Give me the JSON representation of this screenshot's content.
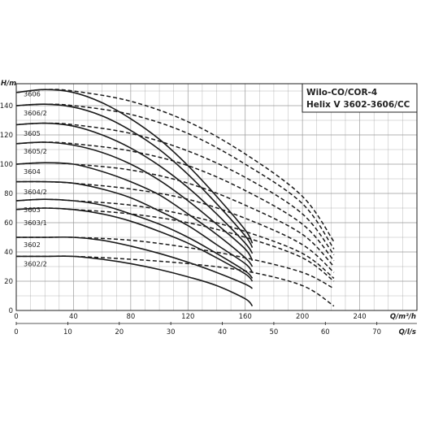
{
  "chart_data": {
    "type": "line",
    "title_lines": [
      "Wilo-CO/COR-4",
      "Helix V 3602-3606/CC"
    ],
    "ylabel": "H/m",
    "xlabel_primary": "Q/m³/h",
    "xlabel_secondary": "Q/l/s",
    "ylim": [
      0,
      155
    ],
    "xlim": [
      0,
      280
    ],
    "xlim_secondary": [
      0,
      77.78
    ],
    "y_ticks": [
      "0",
      "20",
      "40",
      "60",
      "80",
      "100",
      "120",
      "140"
    ],
    "x_ticks": [
      "0",
      "40",
      "80",
      "120",
      "160",
      "200",
      "240"
    ],
    "x2_ticks": [
      "0",
      "10",
      "20",
      "30",
      "40",
      "50",
      "60",
      "70"
    ],
    "grid": true,
    "line_styles": {
      "solid": "#1a1a1a",
      "dashed": "#1a1a1a"
    },
    "series": [
      {
        "name": "3606",
        "label_y": 148,
        "solid": [
          [
            0,
            149
          ],
          [
            20,
            151
          ],
          [
            40,
            149
          ],
          [
            60,
            142
          ],
          [
            80,
            131
          ],
          [
            100,
            117
          ],
          [
            120,
            99
          ],
          [
            140,
            78
          ],
          [
            160,
            55
          ],
          [
            165,
            46
          ]
        ],
        "dashed": [
          [
            0,
            149
          ],
          [
            20,
            151
          ],
          [
            40,
            150
          ],
          [
            80,
            143
          ],
          [
            120,
            129
          ],
          [
            160,
            107
          ],
          [
            200,
            78
          ],
          [
            222,
            47
          ]
        ]
      },
      {
        "name": "3606/2",
        "label_y": 135,
        "solid": [
          [
            0,
            140
          ],
          [
            20,
            141
          ],
          [
            40,
            139
          ],
          [
            60,
            133
          ],
          [
            80,
            123
          ],
          [
            100,
            110
          ],
          [
            120,
            93
          ],
          [
            140,
            73
          ],
          [
            160,
            51
          ],
          [
            165,
            43
          ]
        ],
        "dashed": [
          [
            0,
            140
          ],
          [
            20,
            141
          ],
          [
            40,
            140
          ],
          [
            80,
            134
          ],
          [
            120,
            121
          ],
          [
            160,
            100
          ],
          [
            200,
            73
          ],
          [
            222,
            42
          ]
        ]
      },
      {
        "name": "3605",
        "label_y": 121,
        "solid": [
          [
            0,
            127
          ],
          [
            20,
            128
          ],
          [
            40,
            126
          ],
          [
            60,
            120
          ],
          [
            80,
            111
          ],
          [
            100,
            99
          ],
          [
            120,
            84
          ],
          [
            140,
            66
          ],
          [
            160,
            46
          ],
          [
            165,
            39
          ]
        ],
        "dashed": [
          [
            0,
            127
          ],
          [
            20,
            128
          ],
          [
            40,
            127
          ],
          [
            80,
            121
          ],
          [
            120,
            109
          ],
          [
            160,
            91
          ],
          [
            200,
            66
          ],
          [
            222,
            38
          ]
        ]
      },
      {
        "name": "3605/2",
        "label_y": 109,
        "solid": [
          [
            0,
            114
          ],
          [
            20,
            115
          ],
          [
            40,
            113
          ],
          [
            60,
            108
          ],
          [
            80,
            100
          ],
          [
            100,
            89
          ],
          [
            120,
            75
          ],
          [
            140,
            59
          ],
          [
            160,
            42
          ],
          [
            165,
            34
          ]
        ],
        "dashed": [
          [
            0,
            114
          ],
          [
            20,
            115
          ],
          [
            40,
            114
          ],
          [
            80,
            109
          ],
          [
            120,
            99
          ],
          [
            160,
            82
          ],
          [
            200,
            59
          ],
          [
            222,
            34
          ]
        ]
      },
      {
        "name": "3604",
        "label_y": 95,
        "solid": [
          [
            0,
            100
          ],
          [
            20,
            101
          ],
          [
            40,
            100
          ],
          [
            60,
            95
          ],
          [
            80,
            88
          ],
          [
            100,
            79
          ],
          [
            120,
            66
          ],
          [
            140,
            52
          ],
          [
            160,
            36
          ],
          [
            165,
            30
          ]
        ],
        "dashed": [
          [
            0,
            100
          ],
          [
            20,
            101
          ],
          [
            40,
            100
          ],
          [
            80,
            96
          ],
          [
            120,
            87
          ],
          [
            160,
            72
          ],
          [
            200,
            52
          ],
          [
            222,
            30
          ]
        ]
      },
      {
        "name": "3604/2",
        "label_y": 81,
        "solid": [
          [
            0,
            88
          ],
          [
            20,
            88
          ],
          [
            40,
            87
          ],
          [
            60,
            83
          ],
          [
            80,
            77
          ],
          [
            100,
            68
          ],
          [
            120,
            58
          ],
          [
            140,
            45
          ],
          [
            160,
            32
          ],
          [
            165,
            26
          ]
        ],
        "dashed": [
          [
            0,
            88
          ],
          [
            20,
            88
          ],
          [
            40,
            87
          ],
          [
            80,
            83
          ],
          [
            120,
            76
          ],
          [
            160,
            63
          ],
          [
            200,
            45
          ],
          [
            222,
            26
          ]
        ]
      },
      {
        "name": "3603",
        "label_y": 69,
        "solid": [
          [
            0,
            75
          ],
          [
            20,
            76
          ],
          [
            40,
            75
          ],
          [
            60,
            72
          ],
          [
            80,
            66
          ],
          [
            100,
            59
          ],
          [
            120,
            50
          ],
          [
            140,
            39
          ],
          [
            160,
            27
          ],
          [
            165,
            22
          ]
        ],
        "dashed": [
          [
            0,
            75
          ],
          [
            20,
            76
          ],
          [
            40,
            75
          ],
          [
            80,
            72
          ],
          [
            120,
            65
          ],
          [
            160,
            54
          ],
          [
            200,
            39
          ],
          [
            222,
            22
          ]
        ]
      },
      {
        "name": "3603/1",
        "label_y": 60,
        "solid": [
          [
            0,
            69
          ],
          [
            20,
            70
          ],
          [
            40,
            69
          ],
          [
            60,
            66
          ],
          [
            80,
            61
          ],
          [
            100,
            54
          ],
          [
            120,
            46
          ],
          [
            140,
            36
          ],
          [
            160,
            25
          ],
          [
            165,
            20
          ]
        ],
        "dashed": [
          [
            0,
            69
          ],
          [
            20,
            70
          ],
          [
            40,
            69
          ],
          [
            80,
            66
          ],
          [
            120,
            60
          ],
          [
            160,
            50
          ],
          [
            200,
            36
          ],
          [
            222,
            20
          ]
        ]
      },
      {
        "name": "3602",
        "label_y": 45,
        "solid": [
          [
            0,
            50
          ],
          [
            20,
            50
          ],
          [
            40,
            50
          ],
          [
            60,
            48
          ],
          [
            80,
            44
          ],
          [
            100,
            39
          ],
          [
            120,
            33
          ],
          [
            140,
            26
          ],
          [
            160,
            18
          ],
          [
            165,
            15
          ]
        ],
        "dashed": [
          [
            0,
            50
          ],
          [
            20,
            50
          ],
          [
            40,
            50
          ],
          [
            80,
            48
          ],
          [
            120,
            43
          ],
          [
            160,
            36
          ],
          [
            200,
            26
          ],
          [
            222,
            15
          ]
        ]
      },
      {
        "name": "3602/2",
        "label_y": 32,
        "solid": [
          [
            0,
            37
          ],
          [
            20,
            37
          ],
          [
            40,
            37
          ],
          [
            60,
            35
          ],
          [
            80,
            32
          ],
          [
            100,
            28
          ],
          [
            120,
            23
          ],
          [
            140,
            17
          ],
          [
            160,
            8
          ],
          [
            165,
            3
          ]
        ],
        "dashed": [
          [
            0,
            37
          ],
          [
            20,
            37
          ],
          [
            40,
            37
          ],
          [
            80,
            35
          ],
          [
            120,
            32
          ],
          [
            160,
            27
          ],
          [
            200,
            17
          ],
          [
            222,
            3
          ]
        ]
      }
    ]
  }
}
